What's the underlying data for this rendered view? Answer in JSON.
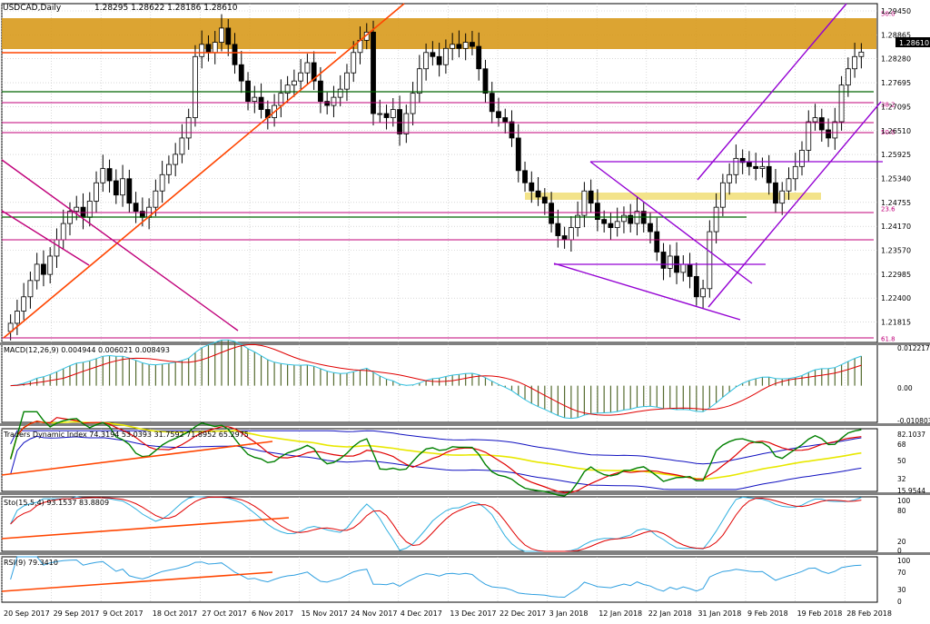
{
  "symbol_header": {
    "symbol": "USDCAD,Daily",
    "ohlc": "1.28295 1.28622 1.28186 1.28610"
  },
  "current_price": "1.28610",
  "colors": {
    "bull": "#ffffff",
    "bear": "#000000",
    "grid": "#c0c0c0",
    "green_line": "#006400",
    "magenta_line": "#c0007a",
    "orange_trend": "#ff4500",
    "purple_channel": "#9400d3",
    "resistance_zone": "#d89a1c",
    "support_zone": "#f3e38a",
    "macd_signal": "#e00000",
    "macd_main": "#30c0e0",
    "macd_hist": "#556b2f",
    "tdi_price": "#008000",
    "tdi_signal": "#e00000",
    "tdi_band": "#1010c0",
    "tdi_mid": "#e8e800",
    "sto_main": "#30b0e0",
    "sto_signal": "#e00000",
    "rsi_line": "#30a0e0"
  },
  "chart_data": [
    {
      "type": "candlestick",
      "panel": "price",
      "y_range": [
        1.2148,
        1.298
      ],
      "y_ticks": [
        "1.29450",
        "1.28865",
        "1.28280",
        "1.27695",
        "1.27095",
        "1.26510",
        "1.25925",
        "1.25340",
        "1.24755",
        "1.24170",
        "1.23570",
        "1.22985",
        "1.22400",
        "1.21815"
      ],
      "x_ticks": [
        "20 Sep 2017",
        "29 Sep 2017",
        "9 Oct 2017",
        "18 Oct 2017",
        "27 Oct 2017",
        "6 Nov 2017",
        "15 Nov 2017",
        "24 Nov 2017",
        "4 Dec 2017",
        "13 Dec 2017",
        "22 Dec 2017",
        "3 Jan 2018",
        "12 Jan 2018",
        "22 Jan 2018",
        "31 Jan 2018",
        "9 Feb 2018",
        "19 Feb 2018",
        "28 Feb 2018"
      ],
      "fib_labels": [
        {
          "label": "50.0",
          "price": 1.2957
        },
        {
          "label": "38.2",
          "price": 1.2733
        },
        {
          "label": "50.0",
          "price": 1.2665
        },
        {
          "label": "23.6",
          "price": 1.2477
        },
        {
          "label": "61.8",
          "price": 1.2158
        }
      ],
      "close_series": [
        1.2195,
        1.2225,
        1.226,
        1.23,
        1.234,
        1.2315,
        1.236,
        1.24,
        1.244,
        1.247,
        1.248,
        1.2455,
        1.2495,
        1.254,
        1.2575,
        1.2545,
        1.251,
        1.255,
        1.249,
        1.247,
        1.2455,
        1.248,
        1.252,
        1.256,
        1.2585,
        1.261,
        1.265,
        1.27,
        1.285,
        1.288,
        1.286,
        1.2885,
        1.292,
        1.288,
        1.283,
        1.279,
        1.274,
        1.275,
        1.272,
        1.27,
        1.273,
        1.276,
        1.278,
        1.279,
        1.281,
        1.2835,
        1.279,
        1.274,
        1.273,
        1.275,
        1.277,
        1.281,
        1.286,
        1.289,
        1.291,
        1.271,
        1.271,
        1.27,
        1.272,
        1.266,
        1.271,
        1.276,
        1.282,
        1.286,
        1.285,
        1.283,
        1.287,
        1.288,
        1.287,
        1.2885,
        1.2875,
        1.282,
        1.276,
        1.2715,
        1.27,
        1.269,
        1.265,
        1.257,
        1.254,
        1.252,
        1.2505,
        1.249,
        1.244,
        1.241,
        1.24,
        1.243,
        1.246,
        1.252,
        1.249,
        1.245,
        1.244,
        1.243,
        1.2445,
        1.246,
        1.244,
        1.247,
        1.244,
        1.242,
        1.237,
        1.233,
        1.236,
        1.232,
        1.234,
        1.231,
        1.226,
        1.228,
        1.242,
        1.248,
        1.254,
        1.256,
        1.26,
        1.259,
        1.258,
        1.2575,
        1.258,
        1.254,
        1.249,
        1.252,
        1.255,
        1.258,
        1.262,
        1.269,
        1.27,
        1.267,
        1.265,
        1.269,
        1.278,
        1.282,
        1.285,
        1.2861
      ]
    },
    {
      "type": "line",
      "panel": "macd",
      "title": "MACD(12,26,9) 0.004944 0.006021 0.008493",
      "y_ticks": [
        "0.012217",
        "0.00",
        "-0.010803"
      ],
      "y_range": [
        -0.0108,
        0.0122
      ]
    },
    {
      "type": "line",
      "panel": "tdi",
      "title": "Traders Dynamic Index 74.3194 53.0393 31.7592 71.8952 65.2975",
      "y_ticks": [
        "82.1037",
        "68",
        "50",
        "32",
        "15.9544"
      ],
      "y_range": [
        15.95,
        82.1
      ]
    },
    {
      "type": "line",
      "panel": "stochastic",
      "title": "Sto(15,5,4) 93.1537 83.8809",
      "y_ticks": [
        "100",
        "80",
        "20",
        "0"
      ],
      "y_range": [
        0,
        100
      ]
    },
    {
      "type": "line",
      "panel": "rsi",
      "title": "RSI(9) 79.3410",
      "y_ticks": [
        "100",
        "70",
        "30",
        "0"
      ],
      "y_range": [
        0,
        100
      ]
    }
  ]
}
